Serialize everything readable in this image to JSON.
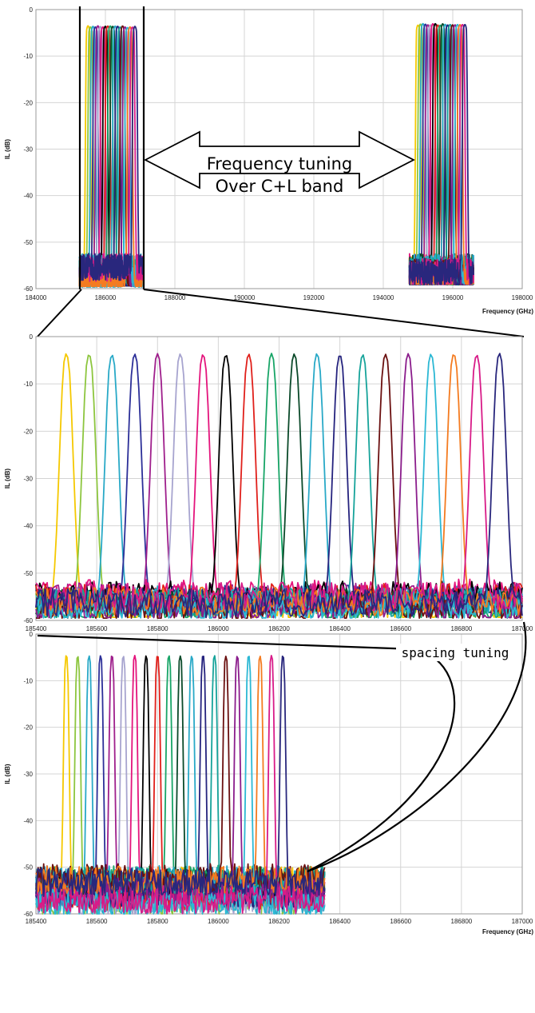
{
  "chart_data": [
    {
      "type": "line",
      "xlabel": "Frequency (GHz)",
      "ylabel": "IL (dB)",
      "xlim": [
        184000,
        198000
      ],
      "ylim": [
        -60,
        0
      ],
      "x_ticks": [
        "184000",
        "186000",
        "188000",
        "190000",
        "192000",
        "194000",
        "196000",
        "198000"
      ],
      "y_ticks": [
        "0",
        "-10",
        "-20",
        "-30",
        "-40",
        "-50",
        "-60"
      ],
      "grid": true,
      "filter_groups": [
        {
          "x_start": 185500,
          "x_end": 186850,
          "peak": -3.5,
          "channels": 20
        },
        {
          "x_start": 195000,
          "x_end": 196350,
          "peak": -3,
          "channels": 20
        }
      ],
      "annotations": [
        "Frequency tuning",
        "Over C+L band"
      ]
    },
    {
      "type": "line",
      "xlabel": "",
      "ylabel": "IL (dB)",
      "xlim": [
        185400,
        187000
      ],
      "ylim": [
        -60,
        0
      ],
      "x_ticks": [
        "185400",
        "185600",
        "185800",
        "186000",
        "186200",
        "186400",
        "186600",
        "186800",
        "187000"
      ],
      "y_ticks": [
        "0",
        "-10",
        "-20",
        "-30",
        "-40",
        "-50",
        "-60"
      ],
      "grid": true,
      "channel_peaks_x": [
        185500,
        185575,
        185650,
        185725,
        185800,
        185875,
        185950,
        186025,
        186100,
        186175,
        186250,
        186325,
        186400,
        186475,
        186550,
        186625,
        186700,
        186775,
        186850,
        186925
      ],
      "channel_peak_il": -3.5
    },
    {
      "type": "line",
      "xlabel": "Frequency (GHz)",
      "ylabel": "IL (dB)",
      "xlim": [
        185400,
        187000
      ],
      "ylim": [
        -60,
        0
      ],
      "x_ticks": [
        "185400",
        "185600",
        "185800",
        "186000",
        "186200",
        "186400",
        "186600",
        "186800",
        "187000"
      ],
      "y_ticks": [
        "0",
        "-10",
        "-20",
        "-30",
        "-40",
        "-50",
        "-60"
      ],
      "grid": true,
      "channel_peaks_x": [
        185500,
        185537.5,
        185575,
        185612.5,
        185650,
        185687.5,
        185725,
        185762.5,
        185800,
        185837.5,
        185875,
        185912.5,
        185950,
        185987.5,
        186025,
        186062.5,
        186100,
        186137.5,
        186175,
        186212.5
      ],
      "channel_peak_il": -4.5,
      "annotations": [
        "spacing tuning"
      ]
    }
  ],
  "colors": [
    "#f5c800",
    "#8dc63f",
    "#29a9c7",
    "#2c2f98",
    "#9f1f8c",
    "#a7a4cf",
    "#e4147c",
    "#000000",
    "#e0201b",
    "#18a567",
    "#0b4a2a",
    "#29a9c7",
    "#25237e",
    "#16a39a",
    "#6b1010",
    "#8b1d8c",
    "#2cb8d4",
    "#f47b20",
    "#d81b88",
    "#29277d"
  ]
}
